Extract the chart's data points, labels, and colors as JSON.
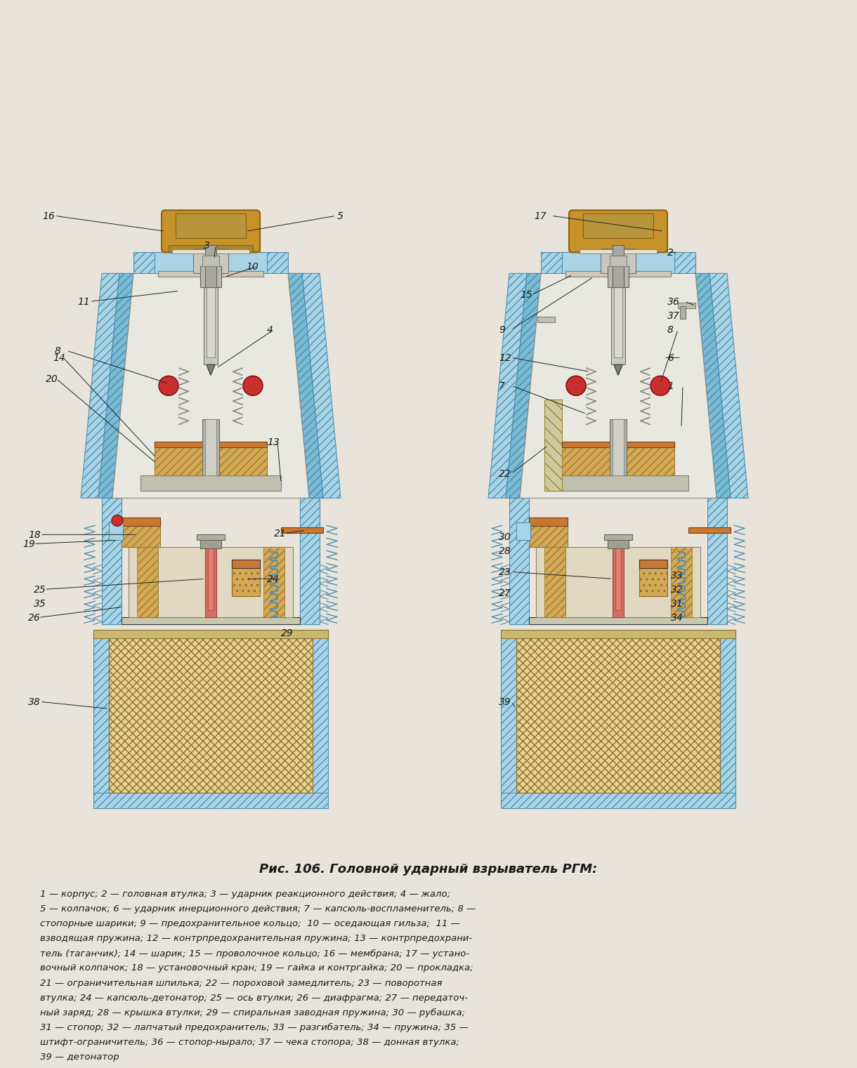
{
  "bg_color": "#e8e4dc",
  "title": "Рис. 106. Головной ударный взрыватель РГМ:",
  "title_fontsize": 13,
  "caption_lines": [
    "1 — корпус; 2 — головная втулка; 3 — ударник реакционного действия; 4 — жало;",
    "5 — колпачок; 6 — ударник инерционного действия; 7 — капсюль-воспламенитель; 8 —",
    "стопорные шарики; 9 — предохранительное кольцо;  10 — оседающая гильза;  11 —",
    "взводящая пружина; 12 — контрпредохранительная пружина; 13 — контрпредохрани-",
    "тель (таганчик); 14 — шарик; 15 — проволочное кольцо; 16 — мембрана; 17 — устано-",
    "вочный колпачок; 18 — установочный кран; 19 — гайка и контргайка; 20 — прокладка;",
    "21 — ограничительная шпилька; 22 — пороховой замедлитель; 23 — поворотная",
    "втулка; 24 — капсюль-детонатор; 25 — ось втулки; 26 — диафрагма; 27 — передаточ-",
    "ный заряд; 28 — крышка втулки; 29 — спиральная заводная пружина; 30 — рубашка;",
    "31 — стопор; 32 — лапчатый предохранитель; 33 — разгибатель; 34 — пружина; 35 —",
    "штифт-ограничитель; 36 — стопор-нырало; 37 — чека стопора; 38 — донная втулка;",
    "39 — детонатор"
  ],
  "caption_fontsize": 9.5,
  "panel_bg": "#f5f0e8",
  "light_blue": "#a8d4e6",
  "med_blue": "#7bbcd4",
  "dark_blue": "#4a8fad",
  "hatch_blue": "#b8dce8",
  "orange_brown": "#c87832",
  "tan": "#d4a855",
  "dark_tan": "#b8943a",
  "light_tan": "#e8d090",
  "red_part": "#c83030",
  "gray_part": "#a0a0a0",
  "dark_gray": "#606060",
  "pink_part": "#e8a090",
  "hatching_color": "#6090a8",
  "outer_wall": "#5a9ab5"
}
